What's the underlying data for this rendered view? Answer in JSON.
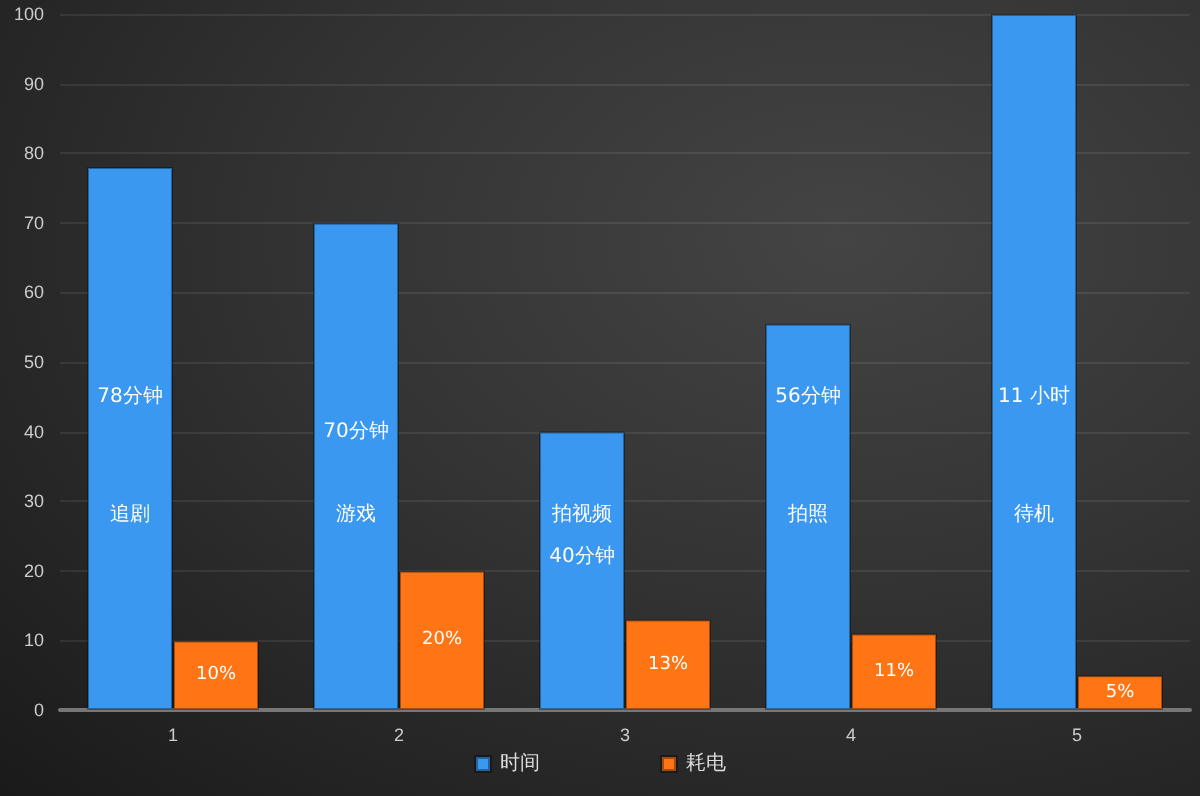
{
  "chart_data": {
    "type": "bar",
    "categories": [
      "1",
      "2",
      "3",
      "4",
      "5"
    ],
    "series": [
      {
        "name": "时间",
        "color": "#3a98f0",
        "values": [
          78,
          70,
          40,
          55.5,
          100
        ]
      },
      {
        "name": "耗电",
        "color": "#ff7414",
        "values": [
          10,
          20,
          13,
          11,
          5
        ],
        "value_labels": [
          "10%",
          "20%",
          "13%",
          "11%",
          "5%"
        ]
      }
    ],
    "ylim": [
      0,
      100
    ],
    "yticks": [
      0,
      10,
      20,
      30,
      40,
      50,
      60,
      70,
      80,
      90,
      100
    ],
    "grid": "y",
    "legend": "bottom",
    "annotations": [
      {
        "text": "78分钟",
        "x": "1",
        "y": 45
      },
      {
        "text": "追剧",
        "x": "1",
        "y": 28
      },
      {
        "text": "70分钟",
        "x": "2",
        "y": 40
      },
      {
        "text": "游戏",
        "x": "2",
        "y": 28
      },
      {
        "text": "拍视频",
        "x": "3",
        "y": 28
      },
      {
        "text": "40分钟",
        "x": "3",
        "y": 22
      },
      {
        "text": "56分钟",
        "x": "4",
        "y": 45
      },
      {
        "text": "拍照",
        "x": "4",
        "y": 28
      },
      {
        "text": "11 小时",
        "x": "5",
        "y": 45
      },
      {
        "text": "待机",
        "x": "5",
        "y": 28
      }
    ]
  }
}
